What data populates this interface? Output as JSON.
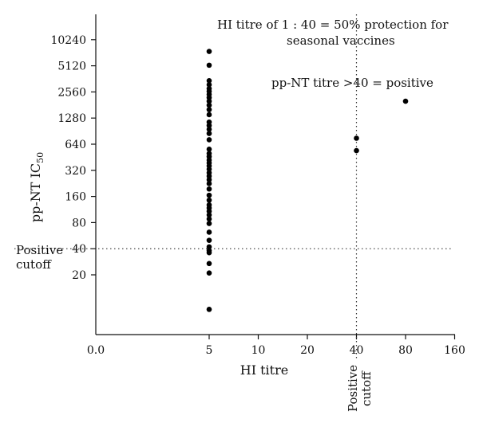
{
  "chart_data": {
    "type": "scatter",
    "xlabel": "HI titre",
    "ylabel": "pp-NT IC",
    "ylabel_subscript": "50",
    "x_scale": "log2",
    "y_scale": "log2",
    "x_ticks": [
      {
        "value": 0.0,
        "label": "0.0"
      },
      {
        "value": 5,
        "label": "5"
      },
      {
        "value": 10,
        "label": "10"
      },
      {
        "value": 20,
        "label": "20"
      },
      {
        "value": 40,
        "label": "40"
      },
      {
        "value": 80,
        "label": "80"
      },
      {
        "value": 160,
        "label": "160"
      }
    ],
    "y_ticks": [
      {
        "value": 20,
        "label": "20"
      },
      {
        "value": 40,
        "label": "40"
      },
      {
        "value": 80,
        "label": "80"
      },
      {
        "value": 160,
        "label": "160"
      },
      {
        "value": 320,
        "label": "320"
      },
      {
        "value": 640,
        "label": "640"
      },
      {
        "value": 1280,
        "label": "1280"
      },
      {
        "value": 2560,
        "label": "2560"
      },
      {
        "value": 5120,
        "label": "5120"
      },
      {
        "value": 10240,
        "label": "10240"
      }
    ],
    "cutoff_x": {
      "value": 40,
      "label_line1": "Positive",
      "label_line2": "cutoff"
    },
    "cutoff_y": {
      "value": 40,
      "label_line1": "Positive",
      "label_line2": "cutoff"
    },
    "annotations": [
      {
        "line1": "HI titre of 1 : 40 = 50%  protection for",
        "line2": "seasonal vaccines"
      },
      {
        "line1": "pp-NT titre >40 = positive"
      }
    ],
    "points": [
      {
        "x": 5,
        "y": 7500
      },
      {
        "x": 5,
        "y": 5200
      },
      {
        "x": 5,
        "y": 3450
      },
      {
        "x": 5,
        "y": 3100
      },
      {
        "x": 5,
        "y": 2800
      },
      {
        "x": 5,
        "y": 2600
      },
      {
        "x": 5,
        "y": 2400
      },
      {
        "x": 5,
        "y": 2200
      },
      {
        "x": 5,
        "y": 2000
      },
      {
        "x": 5,
        "y": 1800
      },
      {
        "x": 5,
        "y": 1600
      },
      {
        "x": 5,
        "y": 1400
      },
      {
        "x": 5,
        "y": 1150
      },
      {
        "x": 5,
        "y": 1050
      },
      {
        "x": 5,
        "y": 950
      },
      {
        "x": 5,
        "y": 850
      },
      {
        "x": 5,
        "y": 720
      },
      {
        "x": 5,
        "y": 560
      },
      {
        "x": 5,
        "y": 500
      },
      {
        "x": 5,
        "y": 460
      },
      {
        "x": 5,
        "y": 420
      },
      {
        "x": 5,
        "y": 390
      },
      {
        "x": 5,
        "y": 360
      },
      {
        "x": 5,
        "y": 330
      },
      {
        "x": 5,
        "y": 300
      },
      {
        "x": 5,
        "y": 275
      },
      {
        "x": 5,
        "y": 250
      },
      {
        "x": 5,
        "y": 225
      },
      {
        "x": 5,
        "y": 195
      },
      {
        "x": 5,
        "y": 165
      },
      {
        "x": 5,
        "y": 145
      },
      {
        "x": 5,
        "y": 128
      },
      {
        "x": 5,
        "y": 118
      },
      {
        "x": 5,
        "y": 108
      },
      {
        "x": 5,
        "y": 98
      },
      {
        "x": 5,
        "y": 88
      },
      {
        "x": 5,
        "y": 78
      },
      {
        "x": 5,
        "y": 62
      },
      {
        "x": 5,
        "y": 50
      },
      {
        "x": 5,
        "y": 42
      },
      {
        "x": 5,
        "y": 38
      },
      {
        "x": 5,
        "y": 36
      },
      {
        "x": 5,
        "y": 27
      },
      {
        "x": 5,
        "y": 21
      },
      {
        "x": 5,
        "y": 8
      },
      {
        "x": 40,
        "y": 750
      },
      {
        "x": 40,
        "y": 540
      },
      {
        "x": 80,
        "y": 2000
      }
    ]
  }
}
